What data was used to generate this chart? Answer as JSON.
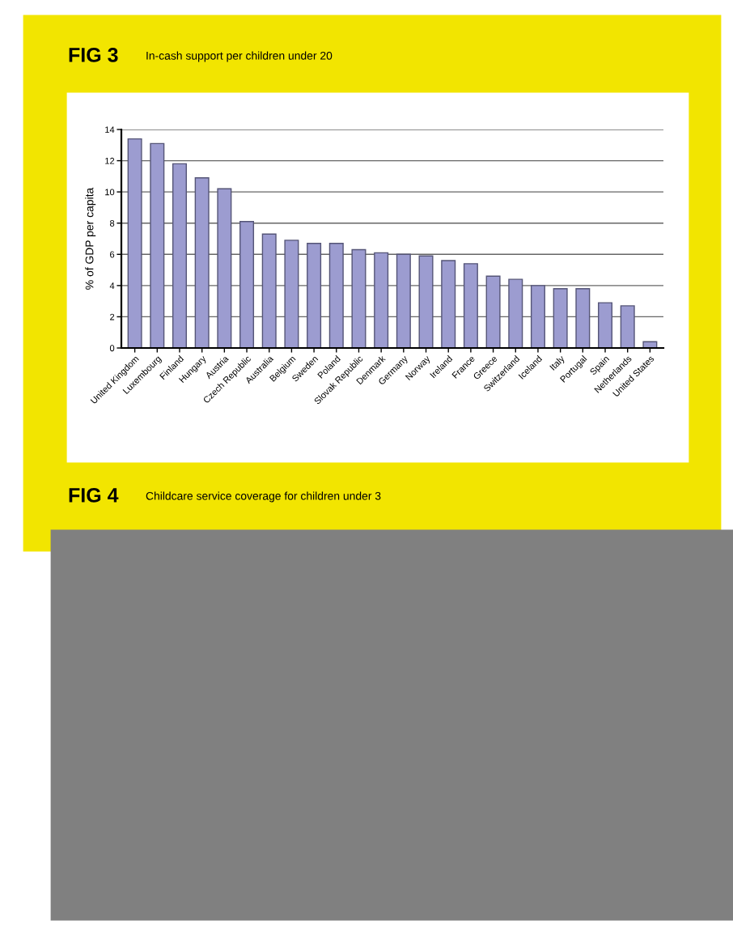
{
  "chart_data": {
    "type": "bar",
    "title": "FIG 3",
    "subtitle": "In-cash support per children under 20",
    "ylabel": "% of GDP per capita",
    "categories": [
      "United Kingdom",
      "Luxembourg",
      "Finland",
      "Hungary",
      "Austria",
      "Czech Republic",
      "Australia",
      "Belgium",
      "Sweden",
      "Poland",
      "Slovak Republic",
      "Denmark",
      "Germany",
      "Norway",
      "Ireland",
      "France",
      "Greece",
      "Switzerland",
      "Iceland",
      "Italy",
      "Portugal",
      "Spain",
      "Netherlands",
      "United States"
    ],
    "values": [
      13.4,
      13.1,
      11.8,
      10.9,
      10.2,
      8.1,
      7.3,
      6.9,
      6.7,
      6.7,
      6.3,
      6.1,
      6.0,
      5.9,
      5.6,
      5.4,
      4.6,
      4.4,
      4.0,
      3.8,
      3.8,
      2.9,
      2.7,
      0.4
    ],
    "color": "#9c9cd0",
    "ylim": [
      0,
      14
    ],
    "yticks": [
      0,
      2,
      4,
      6,
      8,
      10,
      12,
      14
    ],
    "grid": "y",
    "annotations": [
      "FIG 4",
      "Childcare service coverage for children under 3"
    ]
  }
}
